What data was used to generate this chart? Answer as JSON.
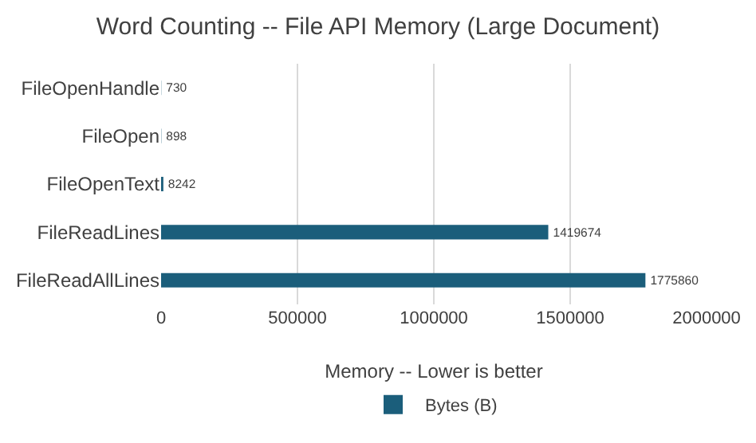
{
  "chart_data": {
    "type": "bar",
    "orientation": "horizontal",
    "title": "Word Counting -- File API Memory (Large Document)",
    "xlabel": "Memory -- Lower is better",
    "categories": [
      "FileOpenHandle",
      "FileOpen",
      "FileOpenText",
      "FileReadLines",
      "FileReadAllLines"
    ],
    "series": [
      {
        "name": "Bytes (B)",
        "color": "#1b5e7b",
        "values": [
          730,
          898,
          8242,
          1419674,
          1775860
        ]
      }
    ],
    "xlim": [
      0,
      2000000
    ],
    "xticks": [
      0,
      500000,
      1000000,
      1500000,
      2000000
    ],
    "grid": "x",
    "legend": "bottom",
    "data_labels": true
  }
}
